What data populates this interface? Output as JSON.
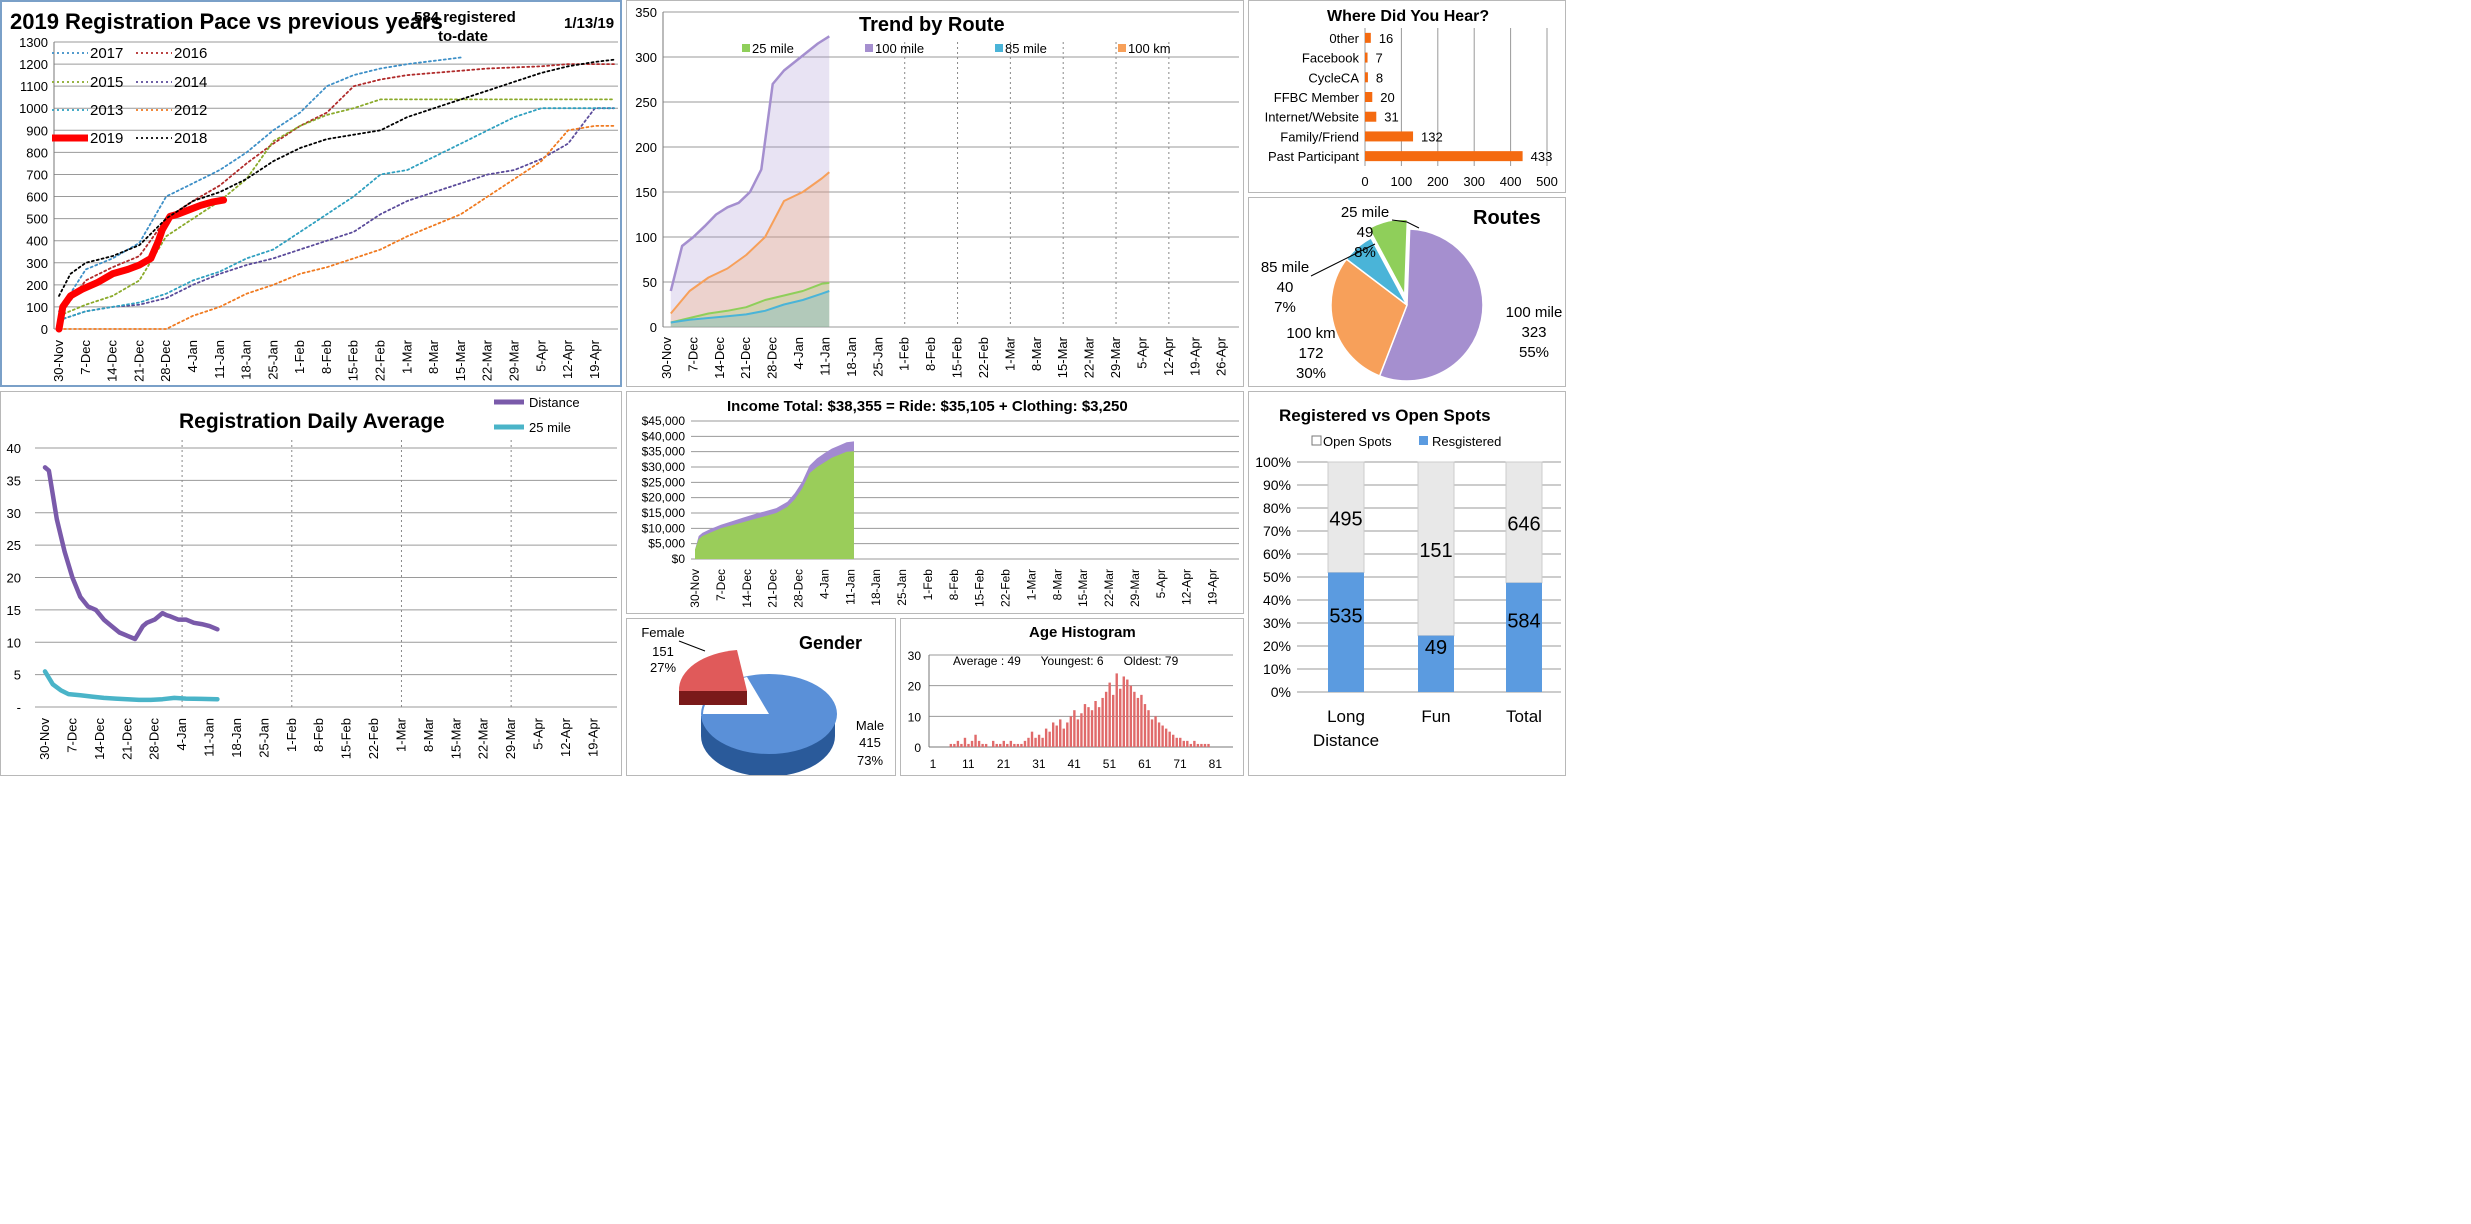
{
  "colors": {
    "y2017": "#3d8fc7",
    "y2016": "#b02a2a",
    "y2015": "#8aaa2a",
    "y2014": "#5a4a9a",
    "y2013": "#2fa0c0",
    "y2012": "#f07a20",
    "y2019": "#ff0000",
    "y2018": "#000000",
    "r25": "#8fcf5a",
    "r100": "#a58fcf",
    "r85": "#4ab4d8",
    "r100km": "#f7a05a",
    "distance": "#7a5aaa",
    "mile25": "#4ab4c8",
    "hear": "#f46a10",
    "clothing": "#a28ad0",
    "ride": "#9acd5a",
    "female": "#e05a5a",
    "male": "#5a90d8",
    "age": "#e06a6a",
    "open": "#e8e8e8",
    "registered": "#5b9be0"
  },
  "pace": {
    "title": "2019 Registration Pace vs previous years",
    "note_line1": "584 registered",
    "note_line2": "to-date",
    "date": "1/13/19"
  },
  "trend": {
    "title": "Trend by Route"
  },
  "daily": {
    "title": "Registration Daily Average"
  },
  "income": {
    "title": "Income Total: $38,355  =  Ride: $35,105 +  Clothing: $3,250"
  },
  "hear": {
    "title": "Where Did You Hear?"
  },
  "routes": {
    "title": "Routes"
  },
  "regopen": {
    "title": "Registered vs Open Spots"
  },
  "gender": {
    "title": "Gender"
  },
  "age": {
    "title": "Age Histogram",
    "stats": "Average : 49      Youngest: 6      Oldest: 79"
  },
  "chart_data": [
    {
      "id": "pace",
      "type": "line",
      "title": "2019 Registration Pace vs previous years",
      "ylim": [
        0,
        1300
      ],
      "yticks": [
        0,
        100,
        200,
        300,
        400,
        500,
        600,
        700,
        800,
        900,
        1000,
        1100,
        1200,
        1300
      ],
      "xticks": [
        "30-Nov",
        "7-Dec",
        "14-Dec",
        "21-Dec",
        "28-Dec",
        "4-Jan",
        "11-Jan",
        "18-Jan",
        "25-Jan",
        "1-Feb",
        "8-Feb",
        "15-Feb",
        "22-Feb",
        "1-Mar",
        "8-Mar",
        "15-Mar",
        "22-Mar",
        "29-Mar",
        "5-Apr",
        "12-Apr",
        "19-Apr"
      ],
      "x_unit": "days from 30-Nov",
      "xlim": [
        0,
        145
      ],
      "grid": "horizontal",
      "legend": "top-left",
      "series": [
        {
          "name": "2017",
          "x": [
            0,
            7,
            14,
            21,
            28,
            35,
            42,
            49,
            56,
            63,
            70,
            77,
            84,
            91,
            98,
            105
          ],
          "y": [
            80,
            270,
            320,
            390,
            600,
            660,
            720,
            800,
            900,
            980,
            1100,
            1150,
            1180,
            1200,
            1215,
            1230
          ]
        },
        {
          "name": "2016",
          "x": [
            0,
            7,
            14,
            21,
            28,
            35,
            42,
            49,
            56,
            63,
            70,
            77,
            84,
            91,
            98,
            105,
            112,
            119,
            126,
            133,
            140,
            145
          ],
          "y": [
            60,
            220,
            280,
            330,
            500,
            580,
            650,
            750,
            840,
            920,
            980,
            1100,
            1130,
            1150,
            1160,
            1170,
            1180,
            1185,
            1190,
            1200,
            1200,
            1200
          ]
        },
        {
          "name": "2015",
          "x": [
            0,
            7,
            14,
            21,
            28,
            35,
            42,
            49,
            56,
            63,
            70,
            77,
            84,
            91,
            98,
            105,
            112,
            119,
            126,
            133,
            140,
            145
          ],
          "y": [
            60,
            110,
            150,
            220,
            420,
            500,
            580,
            680,
            850,
            920,
            970,
            1000,
            1040,
            1040,
            1040,
            1040,
            1040,
            1040,
            1040,
            1040,
            1040,
            1040
          ]
        },
        {
          "name": "2014",
          "x": [
            0,
            7,
            14,
            21,
            28,
            35,
            42,
            49,
            56,
            63,
            70,
            77,
            84,
            91,
            98,
            105,
            112,
            119,
            126,
            133,
            140,
            145
          ],
          "y": [
            40,
            80,
            100,
            110,
            140,
            200,
            250,
            290,
            320,
            360,
            400,
            440,
            520,
            580,
            620,
            660,
            700,
            720,
            770,
            840,
            1000,
            1000
          ]
        },
        {
          "name": "2013",
          "x": [
            0,
            7,
            14,
            21,
            28,
            35,
            42,
            49,
            56,
            63,
            70,
            77,
            84,
            91,
            98,
            105,
            112,
            119,
            126,
            133,
            140,
            145
          ],
          "y": [
            40,
            80,
            100,
            120,
            160,
            220,
            260,
            320,
            360,
            440,
            520,
            600,
            700,
            720,
            780,
            840,
            900,
            960,
            1000,
            1000,
            1000,
            1000
          ]
        },
        {
          "name": "2012",
          "x": [
            0,
            21,
            28,
            35,
            42,
            49,
            56,
            63,
            70,
            77,
            84,
            91,
            98,
            105,
            112,
            119,
            126,
            133,
            140,
            145
          ],
          "y": [
            0,
            0,
            0,
            60,
            100,
            160,
            200,
            250,
            280,
            320,
            360,
            420,
            470,
            520,
            600,
            680,
            760,
            900,
            920,
            920
          ]
        },
        {
          "name": "2019",
          "x": [
            0,
            1,
            3,
            6,
            10,
            14,
            18,
            21,
            24,
            26,
            27,
            29,
            31,
            34,
            37,
            40,
            43
          ],
          "y": [
            0,
            100,
            150,
            180,
            210,
            250,
            270,
            290,
            320,
            400,
            450,
            510,
            520,
            540,
            560,
            575,
            584
          ]
        },
        {
          "name": "2018",
          "x": [
            0,
            3,
            7,
            14,
            21,
            28,
            35,
            42,
            49,
            56,
            63,
            70,
            77,
            84,
            91,
            98,
            105,
            112,
            119,
            126,
            133,
            140,
            145
          ],
          "y": [
            150,
            250,
            300,
            330,
            380,
            500,
            580,
            620,
            680,
            760,
            820,
            860,
            880,
            900,
            960,
            1000,
            1040,
            1080,
            1120,
            1160,
            1190,
            1210,
            1220
          ]
        }
      ]
    },
    {
      "id": "trend",
      "type": "bar",
      "title": "Trend by Route",
      "ylim": [
        0,
        350
      ],
      "yticks": [
        0,
        50,
        100,
        150,
        200,
        250,
        300,
        350
      ],
      "xticks": [
        "30-Nov",
        "7-Dec",
        "14-Dec",
        "21-Dec",
        "28-Dec",
        "4-Jan",
        "11-Jan",
        "18-Jan",
        "25-Jan",
        "1-Feb",
        "8-Feb",
        "15-Feb",
        "22-Feb",
        "1-Mar",
        "8-Mar",
        "15-Mar",
        "22-Mar",
        "29-Mar",
        "5-Apr",
        "12-Apr",
        "19-Apr",
        "26-Apr"
      ],
      "x_unit": "days from 30-Nov",
      "legend": "top",
      "series": [
        {
          "name": "25 mile",
          "x": [
            1,
            6,
            11,
            16,
            21,
            26,
            31,
            36,
            41,
            43
          ],
          "y": [
            5,
            10,
            15,
            18,
            22,
            30,
            35,
            40,
            48,
            49
          ]
        },
        {
          "name": "100 mile",
          "x": [
            1,
            4,
            7,
            10,
            13,
            16,
            19,
            22,
            25,
            28,
            31,
            34,
            37,
            40,
            43
          ],
          "y": [
            40,
            90,
            100,
            112,
            125,
            133,
            138,
            150,
            175,
            270,
            285,
            295,
            305,
            315,
            323
          ]
        },
        {
          "name": "85 mile",
          "x": [
            1,
            6,
            11,
            16,
            21,
            26,
            31,
            36,
            41,
            43
          ],
          "y": [
            5,
            8,
            10,
            12,
            14,
            18,
            25,
            30,
            37,
            40
          ]
        },
        {
          "name": "100 km",
          "x": [
            1,
            6,
            11,
            16,
            21,
            26,
            31,
            36,
            41,
            43
          ],
          "y": [
            15,
            40,
            55,
            65,
            80,
            100,
            140,
            150,
            165,
            172
          ]
        }
      ]
    },
    {
      "id": "daily",
      "type": "line",
      "title": "Registration Daily Average",
      "ylim": [
        0,
        40
      ],
      "yticks": [
        "-",
        "5",
        "10",
        "15",
        "20",
        "25",
        "30",
        "35",
        "40"
      ],
      "xticks": [
        "30-Nov",
        "7-Dec",
        "14-Dec",
        "21-Dec",
        "28-Dec",
        "4-Jan",
        "11-Jan",
        "18-Jan",
        "25-Jan",
        "1-Feb",
        "8-Feb",
        "15-Feb",
        "22-Feb",
        "1-Mar",
        "8-Mar",
        "15-Mar",
        "22-Mar",
        "29-Mar",
        "5-Apr",
        "12-Apr",
        "19-Apr"
      ],
      "x_unit": "days from 30-Nov",
      "legend": "top-right",
      "series": [
        {
          "name": "Distance",
          "x": [
            0,
            1,
            3,
            5,
            7,
            9,
            11,
            13,
            15,
            17,
            19,
            21,
            23,
            25,
            26,
            28,
            30,
            31,
            32,
            34,
            36,
            38,
            40,
            42,
            44
          ],
          "y": [
            37,
            36.5,
            29,
            24,
            20,
            17,
            15.5,
            15,
            13.5,
            12.5,
            11.5,
            11,
            10.5,
            12.5,
            13,
            13.5,
            14.5,
            14.2,
            14,
            13.5,
            13.5,
            13,
            12.8,
            12.5,
            12
          ]
        },
        {
          "name": "25 mile",
          "x": [
            0,
            2,
            4,
            6,
            9,
            12,
            15,
            18,
            21,
            24,
            27,
            30,
            33,
            36,
            40,
            44
          ],
          "y": [
            5.5,
            3.5,
            2.6,
            2,
            1.8,
            1.6,
            1.4,
            1.3,
            1.2,
            1.1,
            1.1,
            1.2,
            1.4,
            1.3,
            1.25,
            1.2
          ]
        }
      ]
    },
    {
      "id": "income",
      "type": "area",
      "title": "Income Total: $38,355  =  Ride: $35,105 +  Clothing: $3,250",
      "ylim": [
        0,
        45000
      ],
      "yticks": [
        "$0",
        "$5,000",
        "$10,000",
        "$15,000",
        "$20,000",
        "$25,000",
        "$30,000",
        "$35,000",
        "$40,000",
        "$45,000"
      ],
      "xticks": [
        "30-Nov",
        "7-Dec",
        "14-Dec",
        "21-Dec",
        "28-Dec",
        "4-Jan",
        "11-Jan",
        "18-Jan",
        "25-Jan",
        "1-Feb",
        "8-Feb",
        "15-Feb",
        "22-Feb",
        "1-Mar",
        "8-Mar",
        "15-Mar",
        "22-Mar",
        "29-Mar",
        "5-Apr",
        "12-Apr",
        "19-Apr"
      ],
      "x_unit": "days from 30-Nov",
      "series": [
        {
          "name": "Ride",
          "x": [
            0,
            1,
            2,
            4,
            7,
            10,
            13,
            16,
            19,
            22,
            25,
            27,
            29,
            31,
            33,
            35,
            37,
            39,
            41,
            43
          ],
          "y": [
            3000,
            6500,
            7500,
            8500,
            10000,
            11000,
            12000,
            13000,
            14000,
            15000,
            17000,
            19500,
            23000,
            28000,
            30000,
            31500,
            33000,
            34000,
            35000,
            35105
          ]
        },
        {
          "name": "Clothing",
          "x": [
            0,
            1,
            2,
            4,
            7,
            10,
            13,
            16,
            19,
            22,
            25,
            27,
            29,
            31,
            33,
            35,
            37,
            39,
            41,
            43
          ],
          "y": [
            3000,
            7500,
            8500,
            9700,
            11200,
            12300,
            13500,
            14600,
            15600,
            16600,
            18700,
            21500,
            25200,
            30500,
            32800,
            34500,
            36000,
            37000,
            38100,
            38355
          ]
        }
      ]
    },
    {
      "id": "hear",
      "type": "bar",
      "title": "Where Did You Hear?",
      "orientation": "horizontal",
      "categories": [
        "0ther",
        "Facebook",
        "CycleCA",
        "FFBC Member",
        "Internet/Website",
        "Family/Friend",
        "Past Participant"
      ],
      "values": [
        16,
        7,
        8,
        20,
        31,
        132,
        433
      ],
      "xlim": [
        0,
        500
      ],
      "xticks": [
        0,
        100,
        200,
        300,
        400,
        500
      ]
    },
    {
      "id": "routes",
      "type": "pie",
      "title": "Routes",
      "categories": [
        "25 mile",
        "85 mile",
        "100 km",
        "100 mile"
      ],
      "values": [
        49,
        40,
        172,
        323
      ],
      "percent_labels": [
        "8%",
        "7%",
        "30%",
        "55%"
      ]
    },
    {
      "id": "regopen",
      "type": "bar",
      "stacked": "percent",
      "title": "Registered vs Open Spots",
      "categories": [
        "Long Distance",
        "Fun",
        "Total"
      ],
      "series": [
        {
          "name": "Resgistered",
          "values": [
            535,
            49,
            584
          ]
        },
        {
          "name": "Open Spots",
          "values": [
            495,
            151,
            646
          ]
        }
      ],
      "yticks": [
        "0%",
        "10%",
        "20%",
        "30%",
        "40%",
        "50%",
        "60%",
        "70%",
        "80%",
        "90%",
        "100%"
      ],
      "legend": "top"
    },
    {
      "id": "gender",
      "type": "pie",
      "title": "Gender",
      "categories": [
        "Female",
        "Male"
      ],
      "values": [
        151,
        415
      ],
      "percent_labels": [
        "27%",
        "73%"
      ]
    },
    {
      "id": "age",
      "type": "bar",
      "title": "Age Histogram",
      "ylim": [
        0,
        30
      ],
      "yticks": [
        0,
        10,
        20,
        30
      ],
      "xticks": [
        1,
        11,
        21,
        31,
        41,
        51,
        61,
        71,
        81
      ],
      "x": [
        6,
        7,
        8,
        9,
        10,
        11,
        12,
        13,
        14,
        15,
        16,
        17,
        18,
        19,
        20,
        21,
        22,
        23,
        24,
        25,
        26,
        27,
        28,
        29,
        30,
        31,
        32,
        33,
        34,
        35,
        36,
        37,
        38,
        39,
        40,
        41,
        42,
        43,
        44,
        45,
        46,
        47,
        48,
        49,
        50,
        51,
        52,
        53,
        54,
        55,
        56,
        57,
        58,
        59,
        60,
        61,
        62,
        63,
        64,
        65,
        66,
        67,
        68,
        69,
        70,
        71,
        72,
        73,
        74,
        75,
        76,
        77,
        78,
        79
      ],
      "values": [
        1,
        1,
        2,
        1,
        3,
        1,
        2,
        4,
        2,
        1,
        1,
        0,
        2,
        1,
        1,
        2,
        1,
        2,
        1,
        1,
        1,
        2,
        3,
        5,
        3,
        4,
        3,
        6,
        5,
        8,
        7,
        9,
        6,
        8,
        10,
        12,
        9,
        11,
        14,
        13,
        12,
        15,
        13,
        16,
        18,
        21,
        17,
        24,
        19,
        23,
        22,
        20,
        18,
        16,
        17,
        14,
        12,
        9,
        10,
        8,
        7,
        6,
        5,
        4,
        3,
        3,
        2,
        2,
        1,
        2,
        1,
        1,
        1,
        1
      ]
    }
  ]
}
